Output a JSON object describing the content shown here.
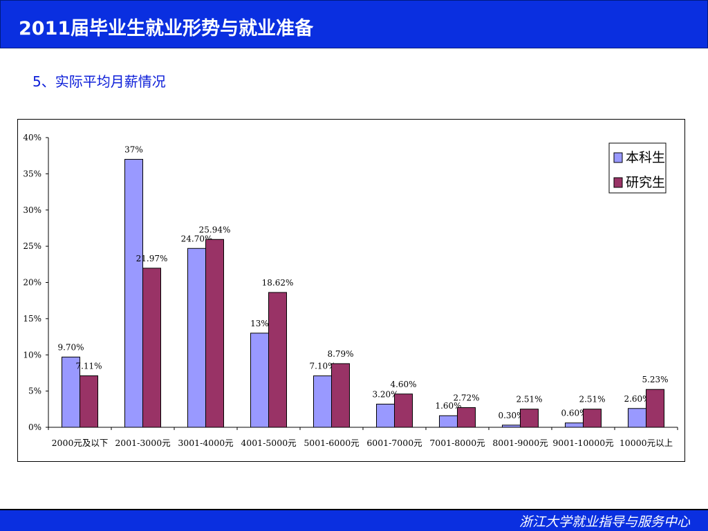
{
  "header": {
    "title": "2011届毕业生就业形势与就业准备"
  },
  "subtitle": "5、实际平均月薪情况",
  "footer": {
    "text": "浙江大学就业指导与服务中心"
  },
  "chart_data": {
    "type": "bar",
    "title": "",
    "xlabel": "",
    "ylabel": "",
    "ylim": [
      0,
      40
    ],
    "yticks": [
      "0%",
      "5%",
      "10%",
      "15%",
      "20%",
      "25%",
      "30%",
      "35%",
      "40%"
    ],
    "grid": false,
    "legend": "top-right",
    "categories": [
      "2000元及以下",
      "2001-3000元",
      "3001-4000元",
      "4001-5000元",
      "5001-6000元",
      "6001-7000元",
      "7001-8000元",
      "8001-9000元",
      "9001-10000元",
      "10000元以上"
    ],
    "series": [
      {
        "name": "本科生",
        "color": "#9999ff",
        "values": [
          9.7,
          37,
          24.7,
          13,
          7.1,
          3.2,
          1.6,
          0.3,
          0.6,
          2.6
        ],
        "labels": [
          "9.70%",
          "37%",
          "24.70%",
          "13%",
          "7.10%",
          "3.20%",
          "1.60%",
          "0.30%",
          "0.60%",
          "2.60%"
        ]
      },
      {
        "name": "研究生",
        "color": "#993366",
        "values": [
          7.11,
          21.97,
          25.94,
          18.62,
          8.79,
          4.6,
          2.72,
          2.51,
          2.51,
          5.23
        ],
        "labels": [
          "7.11%",
          "21.97%",
          "25.94%",
          "18.62%",
          "8.79%",
          "4.60%",
          "2.72%",
          "2.51%",
          "2.51%",
          "5.23%"
        ]
      }
    ]
  }
}
